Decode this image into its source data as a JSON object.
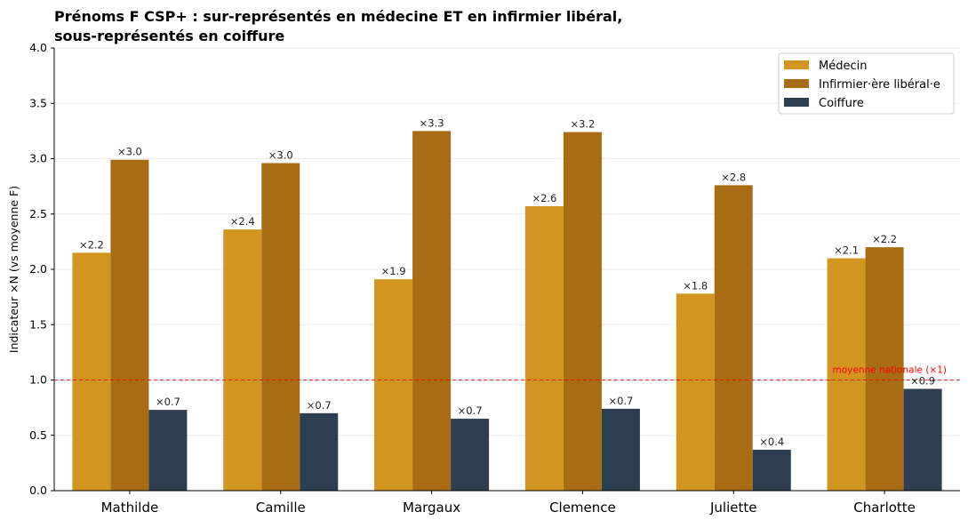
{
  "chart_data": {
    "type": "bar",
    "title_line1": "Prénoms F CSP+ : sur-représentés en médecine ET en infirmier libéral,",
    "title_line2": "sous-représentés en coiffure",
    "ylabel": "Indicateur ×N (vs moyenne F)",
    "xlabel": "",
    "ylim": [
      0,
      4.0
    ],
    "yticks": [
      "0.0",
      "0.5",
      "1.0",
      "1.5",
      "2.0",
      "2.5",
      "3.0",
      "3.5",
      "4.0"
    ],
    "grid": "horizontal",
    "legend_position": "top-right",
    "categories": [
      "Mathilde",
      "Camille",
      "Margaux",
      "Clemence",
      "Juliette",
      "Charlotte"
    ],
    "series": [
      {
        "name": "Médecin",
        "color": "#D19520",
        "values": [
          2.15,
          2.36,
          1.91,
          2.57,
          1.78,
          2.1
        ],
        "labels": [
          "×2.2",
          "×2.4",
          "×1.9",
          "×2.6",
          "×1.8",
          "×2.1"
        ]
      },
      {
        "name": "Infirmier·ère libéral·e",
        "color": "#A86D14",
        "values": [
          2.99,
          2.96,
          3.25,
          3.24,
          2.76,
          2.2
        ],
        "labels": [
          "×3.0",
          "×3.0",
          "×3.3",
          "×3.2",
          "×2.8",
          "×2.2"
        ]
      },
      {
        "name": "Coiffure",
        "color": "#2C3E50",
        "values": [
          0.73,
          0.7,
          0.65,
          0.74,
          0.37,
          0.92
        ],
        "labels": [
          "×0.7",
          "×0.7",
          "×0.7",
          "×0.7",
          "×0.4",
          "×0.9"
        ]
      }
    ],
    "reference_line": {
      "value": 1.0,
      "label": "moyenne nationale (×1)",
      "color": "#FF0000"
    }
  }
}
